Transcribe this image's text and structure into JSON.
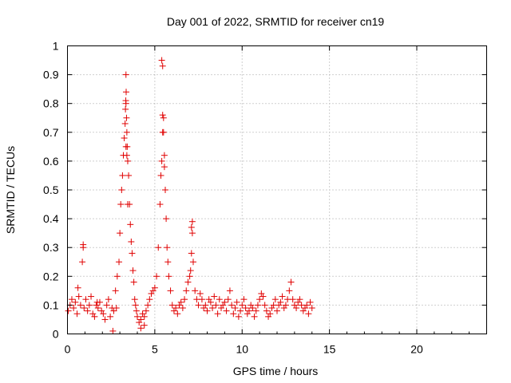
{
  "chart_data": {
    "type": "scatter",
    "title": "Day 001 of 2022, SRMTID for receiver cn19",
    "xlabel": "GPS time / hours",
    "ylabel": "SRMTID / TECUs",
    "xlim": [
      0,
      24
    ],
    "ylim": [
      0,
      1
    ],
    "x_ticks": [
      0,
      5,
      10,
      15,
      20
    ],
    "x_tick_labels": [
      "0",
      "5",
      "10",
      "15",
      "20"
    ],
    "y_ticks": [
      0,
      0.1,
      0.2,
      0.3,
      0.4,
      0.5,
      0.6,
      0.7,
      0.8,
      0.9,
      1
    ],
    "y_tick_labels": [
      "0",
      "0.1",
      "0.2",
      "0.3",
      "0.4",
      "0.5",
      "0.6",
      "0.7",
      "0.8",
      "0.9",
      "1"
    ],
    "grid": true,
    "marker": "plus",
    "color": "#e00000",
    "series": [
      {
        "name": "cn19",
        "x": [
          0.05,
          0.15,
          0.25,
          0.35,
          0.45,
          0.55,
          0.65,
          0.75,
          0.85,
          0.95,
          1.05,
          1.15,
          1.25,
          1.35,
          1.45,
          1.55,
          1.65,
          1.75,
          1.85,
          1.95,
          2.05,
          2.15,
          2.25,
          2.35,
          2.45,
          2.55,
          2.65,
          2.75,
          2.85,
          2.95,
          3.0,
          3.05,
          3.1,
          3.15,
          3.2,
          3.25,
          3.3,
          3.32,
          3.34,
          3.36,
          3.38,
          3.4,
          3.42,
          3.45,
          3.5,
          3.55,
          3.6,
          3.65,
          3.7,
          3.75,
          3.8,
          3.85,
          3.9,
          3.95,
          4.0,
          4.1,
          4.2,
          4.3,
          4.4,
          4.5,
          4.6,
          4.7,
          4.8,
          4.9,
          5.0,
          5.1,
          5.2,
          5.3,
          5.35,
          5.4,
          5.45,
          5.5,
          5.55,
          5.6,
          5.65,
          5.7,
          5.75,
          5.8,
          5.9,
          6.0,
          6.1,
          6.2,
          6.3,
          6.4,
          6.5,
          6.6,
          6.7,
          6.8,
          6.9,
          7.0,
          7.05,
          7.1,
          7.15,
          7.2,
          7.3,
          7.4,
          7.5,
          7.6,
          7.7,
          7.8,
          7.9,
          8.0,
          8.1,
          8.2,
          8.3,
          8.4,
          8.5,
          8.6,
          8.7,
          8.8,
          8.9,
          9.0,
          9.1,
          9.2,
          9.3,
          9.4,
          9.5,
          9.6,
          9.7,
          9.8,
          9.9,
          10.0,
          10.1,
          10.2,
          10.3,
          10.4,
          10.5,
          10.6,
          10.7,
          10.8,
          10.9,
          11.0,
          11.1,
          11.2,
          11.3,
          11.4,
          11.5,
          11.6,
          11.7,
          11.8,
          11.9,
          12.0,
          12.1,
          12.2,
          12.3,
          12.4,
          12.5,
          12.6,
          12.7,
          12.8,
          12.9,
          13.0,
          13.1,
          13.2,
          13.3,
          13.4,
          13.5,
          13.6,
          13.7,
          13.8,
          13.9,
          14.0,
          0.9,
          0.9,
          3.35,
          3.35,
          3.35,
          3.4,
          3.45,
          5.4,
          5.45,
          5.45,
          5.5,
          5.55,
          7.1,
          7.15,
          2.6,
          4.2,
          4.4,
          0.6,
          1.7,
          2.8
        ],
        "y": [
          0.08,
          0.1,
          0.12,
          0.09,
          0.11,
          0.07,
          0.13,
          0.1,
          0.25,
          0.09,
          0.12,
          0.08,
          0.1,
          0.13,
          0.07,
          0.06,
          0.1,
          0.09,
          0.11,
          0.08,
          0.07,
          0.05,
          0.1,
          0.12,
          0.06,
          0.09,
          0.08,
          0.15,
          0.2,
          0.25,
          0.35,
          0.45,
          0.5,
          0.55,
          0.62,
          0.68,
          0.73,
          0.78,
          0.81,
          0.84,
          0.75,
          0.7,
          0.65,
          0.6,
          0.55,
          0.45,
          0.38,
          0.32,
          0.28,
          0.22,
          0.18,
          0.12,
          0.1,
          0.08,
          0.06,
          0.04,
          0.05,
          0.07,
          0.06,
          0.08,
          0.1,
          0.12,
          0.14,
          0.15,
          0.16,
          0.2,
          0.3,
          0.45,
          0.55,
          0.6,
          0.7,
          0.75,
          0.62,
          0.5,
          0.4,
          0.3,
          0.25,
          0.2,
          0.15,
          0.1,
          0.08,
          0.09,
          0.07,
          0.1,
          0.11,
          0.09,
          0.12,
          0.15,
          0.18,
          0.2,
          0.22,
          0.28,
          0.35,
          0.25,
          0.15,
          0.12,
          0.1,
          0.14,
          0.12,
          0.09,
          0.1,
          0.08,
          0.12,
          0.11,
          0.09,
          0.13,
          0.1,
          0.07,
          0.12,
          0.09,
          0.1,
          0.11,
          0.08,
          0.12,
          0.15,
          0.1,
          0.07,
          0.09,
          0.11,
          0.06,
          0.08,
          0.1,
          0.12,
          0.09,
          0.07,
          0.08,
          0.1,
          0.09,
          0.06,
          0.08,
          0.1,
          0.12,
          0.14,
          0.13,
          0.1,
          0.08,
          0.06,
          0.07,
          0.09,
          0.1,
          0.12,
          0.08,
          0.1,
          0.11,
          0.13,
          0.09,
          0.1,
          0.12,
          0.15,
          0.18,
          0.12,
          0.1,
          0.09,
          0.11,
          0.12,
          0.1,
          0.08,
          0.09,
          0.1,
          0.07,
          0.11,
          0.09,
          0.3,
          0.31,
          0.9,
          0.8,
          0.65,
          0.62,
          0.45,
          0.95,
          0.93,
          0.76,
          0.7,
          0.58,
          0.37,
          0.39,
          0.01,
          0.02,
          0.03,
          0.16,
          0.11,
          0.09
        ]
      }
    ]
  }
}
